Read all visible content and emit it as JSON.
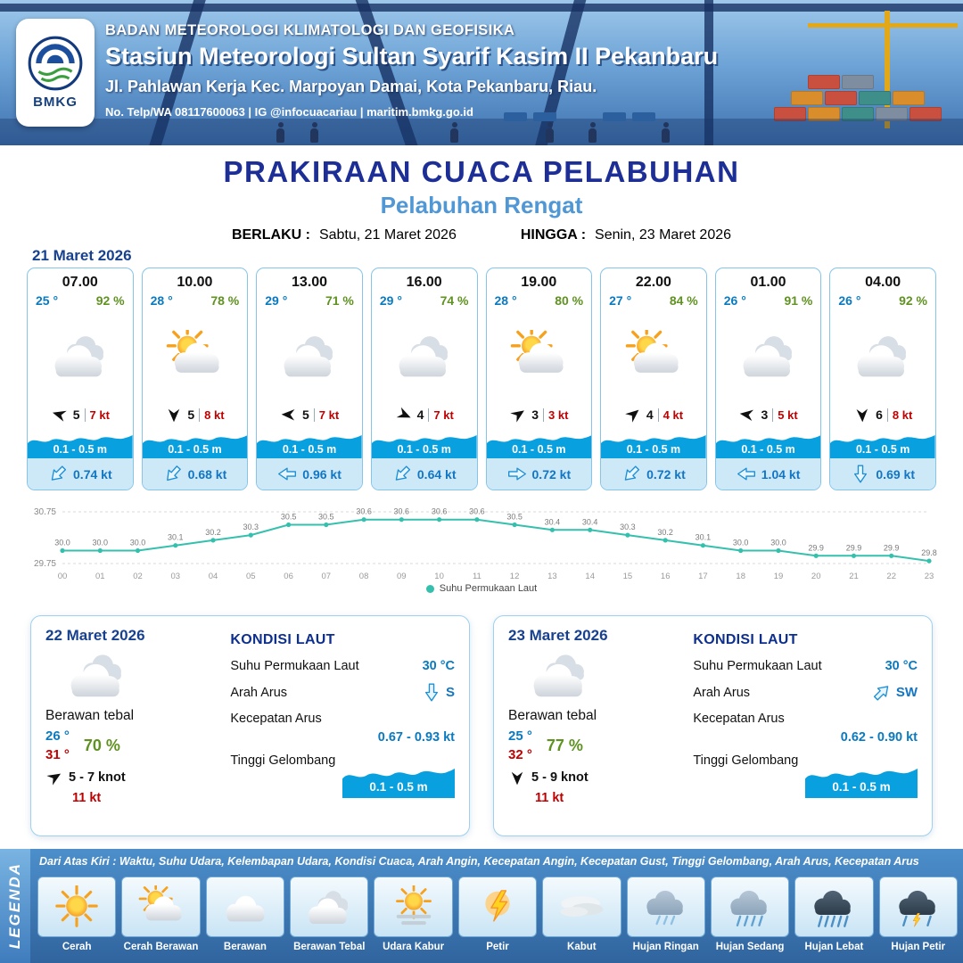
{
  "header": {
    "logo_text": "BMKG",
    "org": "BADAN METEOROLOGI KLIMATOLOGI DAN GEOFISIKA",
    "station": "Stasiun Meteorologi Sultan Syarif Kasim II Pekanbaru",
    "address": "Jl. Pahlawan Kerja Kec. Marpoyan Damai, Kota Pekanbaru, Riau.",
    "contact": "No. Telp/WA 08117600063 | IG @infocuacariau | maritim.bmkg.go.id"
  },
  "title": {
    "main": "PRAKIRAAN CUACA PELABUHAN",
    "sub": "Pelabuhan Rengat",
    "valid_label": "BERLAKU :",
    "valid_value": "Sabtu, 21 Maret 2026",
    "until_label": "HINGGA :",
    "until_value": "Senin, 23 Maret 2026"
  },
  "day1": {
    "date": "21 Maret 2026",
    "cards": [
      {
        "time": "07.00",
        "temp": "25 °",
        "rh": "92 %",
        "icon": "berawan-tebal",
        "wind_deg": 196,
        "wind_speed": "5",
        "gust": "7 kt",
        "wave": "0.1 - 0.5 m",
        "cur_deg": 135,
        "cur_speed": "0.74 kt"
      },
      {
        "time": "10.00",
        "temp": "28 °",
        "rh": "78 %",
        "icon": "cerah-berawan",
        "wind_deg": 90,
        "wind_speed": "5",
        "gust": "8 kt",
        "wave": "0.1 - 0.5 m",
        "cur_deg": 132,
        "cur_speed": "0.68 kt"
      },
      {
        "time": "13.00",
        "temp": "29 °",
        "rh": "71 %",
        "icon": "berawan-tebal",
        "wind_deg": 182,
        "wind_speed": "5",
        "gust": "7 kt",
        "wave": "0.1 - 0.5 m",
        "cur_deg": 180,
        "cur_speed": "0.96 kt"
      },
      {
        "time": "16.00",
        "temp": "29 °",
        "rh": "74 %",
        "icon": "berawan-tebal",
        "wind_deg": 24,
        "wind_speed": "4",
        "gust": "7 kt",
        "wave": "0.1 - 0.5 m",
        "cur_deg": 135,
        "cur_speed": "0.64 kt"
      },
      {
        "time": "19.00",
        "temp": "28 °",
        "rh": "80 %",
        "icon": "cerah-berawan",
        "wind_deg": -34,
        "wind_speed": "3",
        "gust": "3 kt",
        "wave": "0.1 - 0.5 m",
        "cur_deg": 0,
        "cur_speed": "0.72 kt"
      },
      {
        "time": "22.00",
        "temp": "27 °",
        "rh": "84 %",
        "icon": "cerah-berawan",
        "wind_deg": -40,
        "wind_speed": "4",
        "gust": "4 kt",
        "wave": "0.1 - 0.5 m",
        "cur_deg": 135,
        "cur_speed": "0.72 kt"
      },
      {
        "time": "01.00",
        "temp": "26 °",
        "rh": "91 %",
        "icon": "berawan-tebal",
        "wind_deg": 188,
        "wind_speed": "3",
        "gust": "5 kt",
        "wave": "0.1 - 0.5 m",
        "cur_deg": 180,
        "cur_speed": "1.04 kt"
      },
      {
        "time": "04.00",
        "temp": "26 °",
        "rh": "92 %",
        "icon": "berawan-tebal",
        "wind_deg": 88,
        "wind_speed": "6",
        "gust": "8 kt",
        "wave": "0.1 - 0.5 m",
        "cur_deg": 90,
        "cur_speed": "0.69 kt"
      }
    ]
  },
  "chart_data": {
    "type": "line",
    "series_name": "Suhu Permukaan Laut",
    "x": [
      "00",
      "01",
      "02",
      "03",
      "04",
      "05",
      "06",
      "07",
      "08",
      "09",
      "10",
      "11",
      "12",
      "13",
      "14",
      "15",
      "16",
      "17",
      "18",
      "19",
      "20",
      "21",
      "22",
      "23"
    ],
    "values": [
      30.0,
      30.0,
      30.0,
      30.1,
      30.2,
      30.3,
      30.5,
      30.5,
      30.6,
      30.6,
      30.6,
      30.6,
      30.5,
      30.4,
      30.4,
      30.3,
      30.2,
      30.1,
      30.0,
      30.0,
      29.9,
      29.9,
      29.9,
      29.8
    ],
    "ylim": [
      29.75,
      30.75
    ],
    "yticks": [
      30.75,
      29.75
    ],
    "line_color": "#35c0ad",
    "legend_position": "bottom",
    "grid": "dashed"
  },
  "day2": {
    "date": "22 Maret 2026",
    "icon": "berawan-tebal",
    "condition": "Berawan tebal",
    "temp_min": "26 °",
    "temp_max": "31 °",
    "rh": "70 %",
    "wind_deg": -32,
    "wind": "5 - 7 knot",
    "gust": "11 kt",
    "sea": {
      "title": "KONDISI LAUT",
      "sst_label": "Suhu Permukaan Laut",
      "sst_value": "30 °C",
      "dir_label": "Arah Arus",
      "dir_value": "S",
      "dir_deg": 90,
      "speed_label": "Kecepatan Arus",
      "speed_value": "0.67 - 0.93 kt",
      "wave_label": "Tinggi Gelombang",
      "wave_value": "0.1 - 0.5 m"
    }
  },
  "day3": {
    "date": "23 Maret 2026",
    "icon": "berawan-tebal",
    "condition": "Berawan tebal",
    "temp_min": "25 °",
    "temp_max": "32 °",
    "rh": "77 %",
    "wind_deg": 90,
    "wind": "5 - 9 knot",
    "gust": "11 kt",
    "sea": {
      "title": "KONDISI LAUT",
      "sst_label": "Suhu Permukaan Laut",
      "sst_value": "30 °C",
      "dir_label": "Arah Arus",
      "dir_value": "SW",
      "dir_deg": -45,
      "speed_label": "Kecepatan Arus",
      "speed_value": "0.62 - 0.90 kt",
      "wave_label": "Tinggi Gelombang",
      "wave_value": "0.1 - 0.5 m"
    }
  },
  "legend": {
    "side_label": "LEGENDA",
    "note": "Dari Atas Kiri : Waktu, Suhu Udara, Kelembapan Udara, Kondisi Cuaca, Arah Angin, Kecepatan Angin, Kecepatan Gust, Tinggi Gelombang, Arah Arus, Kecepatan Arus",
    "items": [
      {
        "label": "Cerah",
        "icon": "cerah"
      },
      {
        "label": "Cerah Berawan",
        "icon": "cerah-berawan"
      },
      {
        "label": "Berawan",
        "icon": "berawan"
      },
      {
        "label": "Berawan Tebal",
        "icon": "berawan-tebal"
      },
      {
        "label": "Udara Kabur",
        "icon": "udara-kabur"
      },
      {
        "label": "Petir",
        "icon": "petir"
      },
      {
        "label": "Kabut",
        "icon": "kabut"
      },
      {
        "label": "Hujan Ringan",
        "icon": "hujan-ringan"
      },
      {
        "label": "Hujan Sedang",
        "icon": "hujan-sedang"
      },
      {
        "label": "Hujan Lebat",
        "icon": "hujan-lebat"
      },
      {
        "label": "Hujan Petir",
        "icon": "hujan-petir"
      }
    ]
  }
}
